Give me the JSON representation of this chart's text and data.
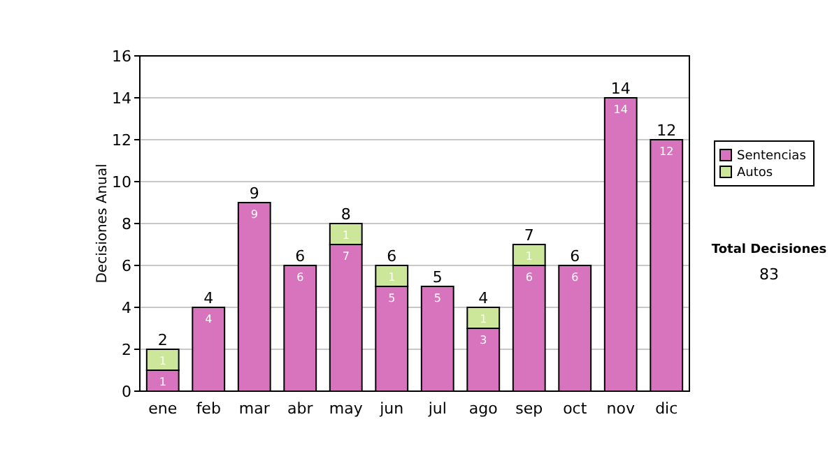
{
  "chart_data": {
    "type": "bar",
    "stacked": true,
    "ylabel": "Decisiones Anual",
    "categories": [
      "ene",
      "feb",
      "mar",
      "abr",
      "may",
      "jun",
      "jul",
      "ago",
      "sep",
      "oct",
      "nov",
      "dic"
    ],
    "series": [
      {
        "name": "Sentencias",
        "color": "#d874bd",
        "values": [
          1,
          4,
          9,
          6,
          7,
          5,
          5,
          3,
          6,
          6,
          14,
          12
        ]
      },
      {
        "name": "Autos",
        "color": "#cce69a",
        "values": [
          1,
          null,
          null,
          null,
          1,
          1,
          null,
          1,
          1,
          null,
          null,
          null
        ]
      }
    ],
    "totals": [
      "2",
      "4",
      "9",
      "6",
      "8",
      "6",
      "5",
      "4",
      "7",
      "6",
      "14",
      "12"
    ],
    "data_labels": true,
    "ylim": [
      0,
      16
    ],
    "yticks": [
      0,
      2,
      4,
      6,
      8,
      10,
      12,
      14,
      16
    ],
    "grid": "y",
    "legend": "right",
    "annotations": [
      "Total Decisiones",
      "83"
    ]
  }
}
